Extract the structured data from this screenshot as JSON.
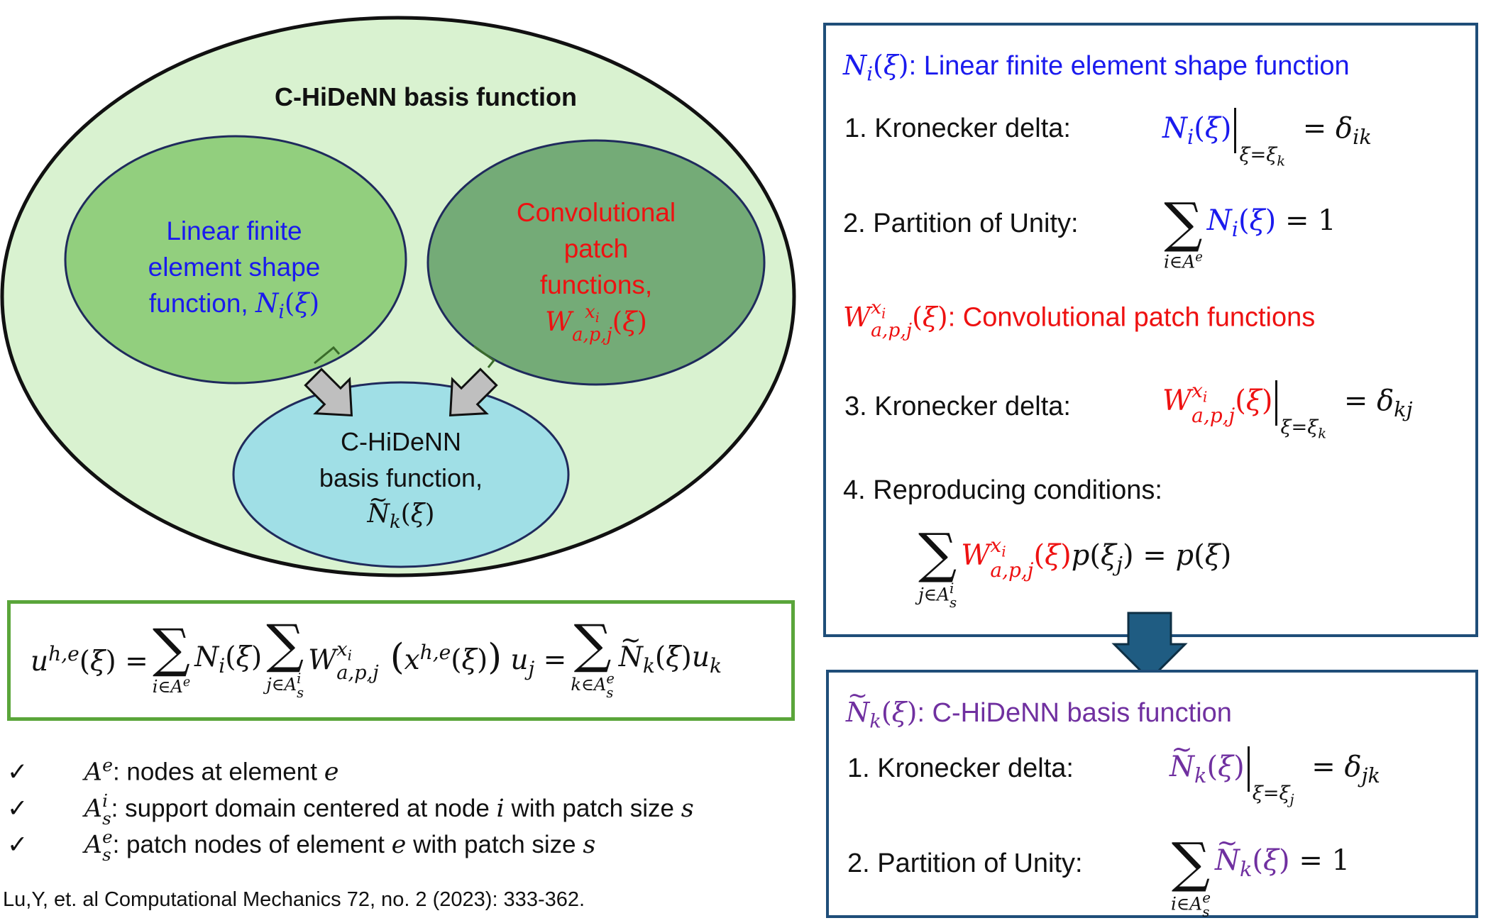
{
  "venn": {
    "outer_title": "C-HiDeNN basis function",
    "fe_text_line1": "Linear finite",
    "fe_text_line2": "element shape",
    "fe_text_line3": "function, ",
    "patch_text_line1": "Convolutional",
    "patch_text_line2": "patch",
    "patch_text_line3": "functions,",
    "chidenn_text_line1": "C-HiDeNN",
    "chidenn_text_line2": "basis function,",
    "colors": {
      "outer_fill": "#d9f2d0",
      "fe_fill": "#92cf7e",
      "patch_fill": "#74ab77",
      "chidenn_fill": "#a0dfe6",
      "ellipse_stroke": "#1f2a5c",
      "arrow_fill": "#bfbfbf"
    }
  },
  "equation_box": {
    "border_color": "#5aa53a"
  },
  "definitions": [
    {
      "check": "✓",
      "symbol": "A",
      "sup": "e",
      "text": ": nodes at element ",
      "tail": "e"
    },
    {
      "check": "✓",
      "symbol": "A",
      "sup": "i",
      "sub": "s",
      "text": ": support domain centered at node ",
      "mid": "i",
      "text2": " with patch size ",
      "tail": "s"
    },
    {
      "check": "✓",
      "symbol": "A",
      "sup": "e",
      "sub": "s",
      "text": ": patch nodes of element ",
      "mid": "e",
      "text2": " with patch size ",
      "tail": "s"
    }
  ],
  "citation": "Lu,Y, et. al Computational Mechanics 72, no. 2 (2023): 333-362.",
  "top_panel": {
    "heading1": ": Linear finite element shape function",
    "item1": "1. Kronecker delta:",
    "item2": "2. Partition of Unity:",
    "heading2": ": Convolutional patch functions",
    "item3": "3. Kronecker delta:",
    "item4": "4. Reproducing conditions:",
    "border_color": "#1f4e79"
  },
  "bottom_panel": {
    "heading": ": C-HiDeNN basis function",
    "item1": "1. Kronecker delta:",
    "item2": "2. Partition of Unity:",
    "border_color": "#1f4e79"
  },
  "down_arrow": {
    "fill": "#1f5c82"
  }
}
